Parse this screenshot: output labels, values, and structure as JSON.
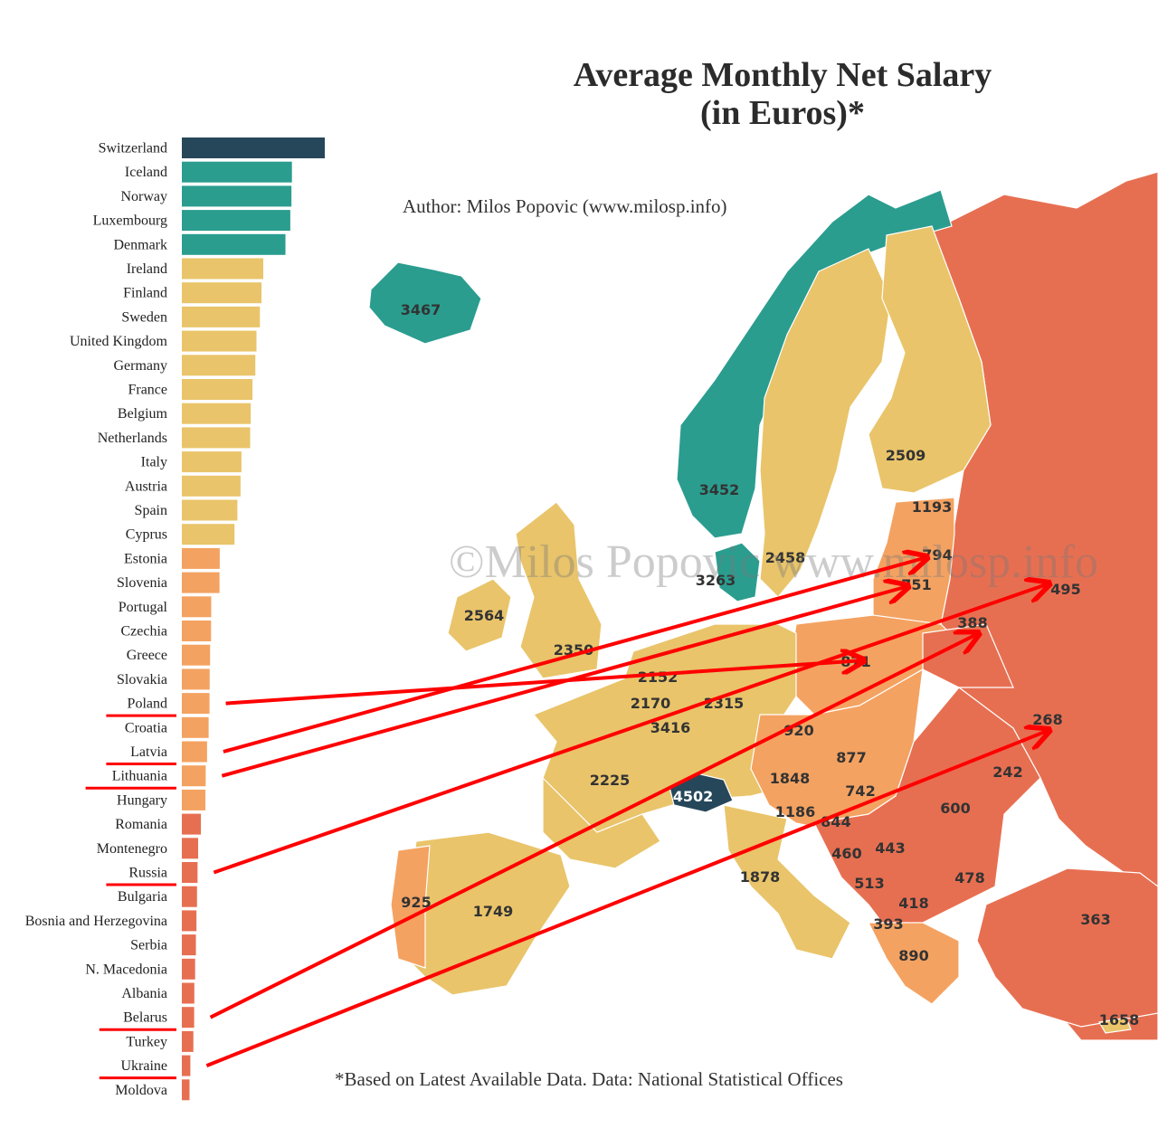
{
  "title_line1": "Average Monthly Net Salary",
  "title_line2": "(in Euros)*",
  "author": "Author: Milos Popovic (www.milosp.info)",
  "footnote": "*Based on Latest Available Data. Data:  National Statistical Offices",
  "watermark": "©Milos Popovic www.milosp.info",
  "colors": {
    "top": "#26475a",
    "high": "#2a9d8f",
    "upper_mid": "#e9c46a",
    "lower_mid": "#f4a261",
    "low": "#e76f51",
    "annotation": "#ff0000",
    "sea": "#ffffff"
  },
  "chart_data": [
    {
      "type": "bar",
      "orientation": "horizontal",
      "categories": [
        "Switzerland",
        "Iceland",
        "Norway",
        "Luxembourg",
        "Denmark",
        "Ireland",
        "Finland",
        "Sweden",
        "United Kingdom",
        "Germany",
        "France",
        "Belgium",
        "Netherlands",
        "Italy",
        "Austria",
        "Spain",
        "Cyprus",
        "Estonia",
        "Slovenia",
        "Portugal",
        "Czechia",
        "Greece",
        "Slovakia",
        "Poland",
        "Croatia",
        "Latvia",
        "Lithuania",
        "Hungary",
        "Romania",
        "Montenegro",
        "Russia",
        "Bulgaria",
        "Bosnia and Herzegovina",
        "Serbia",
        "N. Macedonia",
        "Albania",
        "Belarus",
        "Turkey",
        "Ukraine",
        "Moldova"
      ],
      "values": [
        4502,
        3467,
        3452,
        3416,
        3263,
        2564,
        2509,
        2458,
        2350,
        2315,
        2225,
        2170,
        2152,
        1878,
        1848,
        1749,
        1658,
        1193,
        1186,
        925,
        920,
        890,
        877,
        871,
        844,
        794,
        751,
        742,
        600,
        513,
        495,
        478,
        460,
        443,
        418,
        393,
        388,
        363,
        268,
        242
      ],
      "group_colors": [
        "top",
        "high",
        "high",
        "high",
        "high",
        "upper_mid",
        "upper_mid",
        "upper_mid",
        "upper_mid",
        "upper_mid",
        "upper_mid",
        "upper_mid",
        "upper_mid",
        "upper_mid",
        "upper_mid",
        "upper_mid",
        "upper_mid",
        "lower_mid",
        "lower_mid",
        "lower_mid",
        "lower_mid",
        "lower_mid",
        "lower_mid",
        "lower_mid",
        "lower_mid",
        "lower_mid",
        "lower_mid",
        "lower_mid",
        "low",
        "low",
        "low",
        "low",
        "low",
        "low",
        "low",
        "low",
        "low",
        "low",
        "low",
        "low"
      ],
      "underlined": [
        "Poland",
        "Latvia",
        "Lithuania",
        "Russia",
        "Belarus",
        "Ukraine"
      ]
    },
    {
      "type": "map",
      "labels": [
        {
          "country": "Iceland",
          "value": "3467"
        },
        {
          "country": "Norway",
          "value": "3452"
        },
        {
          "country": "Finland",
          "value": "2509"
        },
        {
          "country": "Sweden",
          "value": "2458"
        },
        {
          "country": "Denmark",
          "value": "3263"
        },
        {
          "country": "Estonia",
          "value": "1193"
        },
        {
          "country": "Latvia",
          "value": "794"
        },
        {
          "country": "Lithuania",
          "value": "751"
        },
        {
          "country": "Russia",
          "value": "495"
        },
        {
          "country": "Belarus",
          "value": "388"
        },
        {
          "country": "Ireland",
          "value": "2564"
        },
        {
          "country": "United Kingdom",
          "value": "2350"
        },
        {
          "country": "Netherlands",
          "value": "2152"
        },
        {
          "country": "Belgium",
          "value": "2170"
        },
        {
          "country": "Luxembourg",
          "value": "3416"
        },
        {
          "country": "Germany",
          "value": "2315"
        },
        {
          "country": "Poland",
          "value": "871"
        },
        {
          "country": "Ukraine",
          "value": "268"
        },
        {
          "country": "Czechia",
          "value": "920"
        },
        {
          "country": "Slovakia",
          "value": "877"
        },
        {
          "country": "France",
          "value": "2225"
        },
        {
          "country": "Switzerland",
          "value": "4502"
        },
        {
          "country": "Austria",
          "value": "1848"
        },
        {
          "country": "Hungary",
          "value": "742"
        },
        {
          "country": "Moldova",
          "value": "242"
        },
        {
          "country": "Romania",
          "value": "600"
        },
        {
          "country": "Slovenia",
          "value": "1186"
        },
        {
          "country": "Croatia",
          "value": "844"
        },
        {
          "country": "Bosnia and Herzegovina",
          "value": "460"
        },
        {
          "country": "Serbia",
          "value": "443"
        },
        {
          "country": "Montenegro",
          "value": "513"
        },
        {
          "country": "Bulgaria",
          "value": "478"
        },
        {
          "country": "N. Macedonia",
          "value": "418"
        },
        {
          "country": "Albania",
          "value": "393"
        },
        {
          "country": "Greece",
          "value": "890"
        },
        {
          "country": "Turkey",
          "value": "363"
        },
        {
          "country": "Cyprus",
          "value": "1658"
        },
        {
          "country": "Portugal",
          "value": "925"
        },
        {
          "country": "Spain",
          "value": "1749"
        },
        {
          "country": "Italy",
          "value": "1878"
        }
      ],
      "arrows": [
        {
          "from": "Poland",
          "to": "Poland"
        },
        {
          "from": "Latvia",
          "to": "Latvia"
        },
        {
          "from": "Lithuania",
          "to": "Lithuania"
        },
        {
          "from": "Russia",
          "to": "Russia"
        },
        {
          "from": "Belarus",
          "to": "Belarus"
        },
        {
          "from": "Ukraine",
          "to": "Ukraine"
        }
      ]
    }
  ]
}
